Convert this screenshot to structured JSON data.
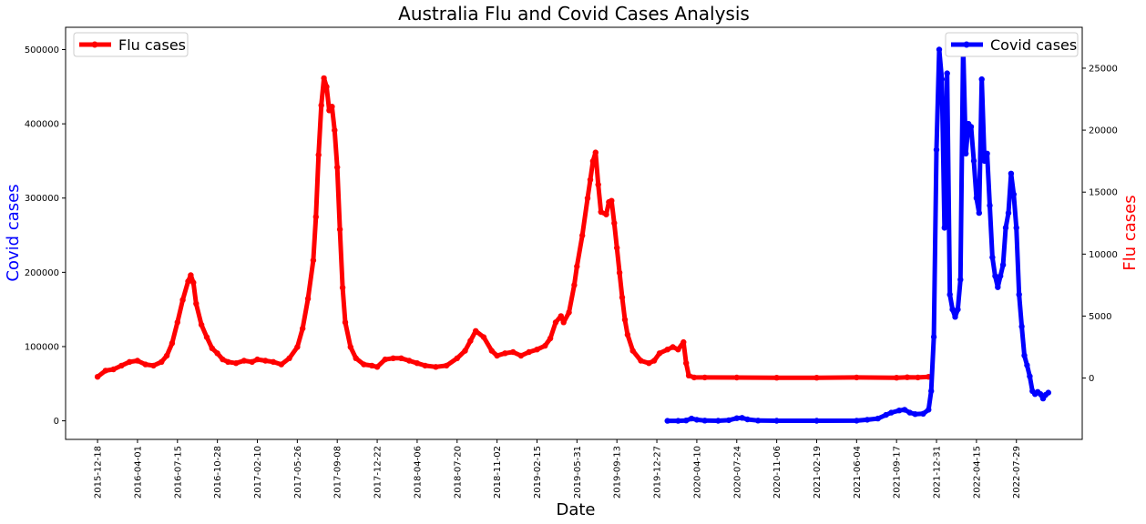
{
  "chart_data": {
    "type": "line",
    "title": "Australia Flu and Covid Cases Analysis",
    "xlabel": "Date",
    "y_left_label": "Covid cases",
    "y_right_label": "Flu cases",
    "x_ticks": [
      "2015-12-18",
      "2016-04-01",
      "2016-07-15",
      "2016-10-28",
      "2017-02-10",
      "2017-05-26",
      "2017-09-08",
      "2017-12-22",
      "2018-04-06",
      "2018-07-20",
      "2018-11-02",
      "2019-02-15",
      "2019-05-31",
      "2019-09-13",
      "2019-12-27",
      "2020-04-10",
      "2020-07-24",
      "2020-11-06",
      "2021-02-19",
      "2021-06-04",
      "2021-09-17",
      "2021-12-31",
      "2022-04-15",
      "2022-07-29"
    ],
    "y_left_ticks": [
      0,
      100000,
      200000,
      300000,
      400000,
      500000
    ],
    "y_right_ticks": [
      0,
      5000,
      10000,
      15000,
      20000,
      25000
    ],
    "y_left_lim": [
      -25000,
      530000
    ],
    "y_right_lim": [
      -4950,
      28300
    ],
    "x_range": [
      "2015-09-25",
      "2023-01-18"
    ],
    "legend_left": "Flu cases",
    "legend_right": "Covid cases",
    "colors": {
      "flu": "#ff0000",
      "covid": "#0000ff"
    },
    "series": [
      {
        "name": "Flu cases",
        "axis": "right",
        "color": "#ff0000",
        "points": [
          [
            "2015-12-18",
            100
          ],
          [
            "2016-01-08",
            600
          ],
          [
            "2016-01-29",
            700
          ],
          [
            "2016-02-19",
            1000
          ],
          [
            "2016-03-11",
            1300
          ],
          [
            "2016-04-01",
            1400
          ],
          [
            "2016-04-22",
            1100
          ],
          [
            "2016-05-13",
            1000
          ],
          [
            "2016-06-03",
            1300
          ],
          [
            "2016-06-17",
            1800
          ],
          [
            "2016-07-01",
            2800
          ],
          [
            "2016-07-15",
            4500
          ],
          [
            "2016-07-29",
            6300
          ],
          [
            "2016-08-12",
            7800
          ],
          [
            "2016-08-19",
            8300
          ],
          [
            "2016-08-26",
            7700
          ],
          [
            "2016-09-02",
            6000
          ],
          [
            "2016-09-16",
            4300
          ],
          [
            "2016-09-30",
            3300
          ],
          [
            "2016-10-14",
            2400
          ],
          [
            "2016-10-28",
            2000
          ],
          [
            "2016-11-11",
            1500
          ],
          [
            "2016-11-25",
            1300
          ],
          [
            "2016-12-16",
            1200
          ],
          [
            "2017-01-06",
            1400
          ],
          [
            "2017-01-27",
            1300
          ],
          [
            "2017-02-10",
            1500
          ],
          [
            "2017-03-03",
            1400
          ],
          [
            "2017-03-24",
            1300
          ],
          [
            "2017-04-14",
            1100
          ],
          [
            "2017-05-05",
            1600
          ],
          [
            "2017-05-26",
            2500
          ],
          [
            "2017-06-09",
            4000
          ],
          [
            "2017-06-23",
            6400
          ],
          [
            "2017-07-07",
            9500
          ],
          [
            "2017-07-14",
            13000
          ],
          [
            "2017-07-21",
            18000
          ],
          [
            "2017-07-28",
            22000
          ],
          [
            "2017-08-04",
            24200
          ],
          [
            "2017-08-11",
            23500
          ],
          [
            "2017-08-18",
            21600
          ],
          [
            "2017-08-25",
            21900
          ],
          [
            "2017-09-01",
            20000
          ],
          [
            "2017-09-08",
            17000
          ],
          [
            "2017-09-15",
            12000
          ],
          [
            "2017-09-22",
            7300
          ],
          [
            "2017-09-29",
            4500
          ],
          [
            "2017-10-13",
            2500
          ],
          [
            "2017-10-27",
            1600
          ],
          [
            "2017-11-17",
            1100
          ],
          [
            "2017-12-08",
            1000
          ],
          [
            "2017-12-22",
            900
          ],
          [
            "2018-01-12",
            1500
          ],
          [
            "2018-02-02",
            1600
          ],
          [
            "2018-02-23",
            1600
          ],
          [
            "2018-03-16",
            1400
          ],
          [
            "2018-04-06",
            1200
          ],
          [
            "2018-04-27",
            1000
          ],
          [
            "2018-05-25",
            900
          ],
          [
            "2018-06-22",
            1000
          ],
          [
            "2018-07-20",
            1600
          ],
          [
            "2018-08-10",
            2200
          ],
          [
            "2018-08-24",
            3000
          ],
          [
            "2018-09-07",
            3800
          ],
          [
            "2018-09-28",
            3300
          ],
          [
            "2018-10-19",
            2200
          ],
          [
            "2018-11-02",
            1800
          ],
          [
            "2018-11-23",
            2000
          ],
          [
            "2018-12-14",
            2100
          ],
          [
            "2019-01-04",
            1800
          ],
          [
            "2019-01-25",
            2100
          ],
          [
            "2019-02-15",
            2300
          ],
          [
            "2019-03-08",
            2600
          ],
          [
            "2019-03-22",
            3200
          ],
          [
            "2019-04-05",
            4500
          ],
          [
            "2019-04-19",
            5000
          ],
          [
            "2019-04-26",
            4500
          ],
          [
            "2019-05-10",
            5300
          ],
          [
            "2019-05-24",
            7500
          ],
          [
            "2019-05-31",
            9000
          ],
          [
            "2019-06-14",
            11500
          ],
          [
            "2019-06-28",
            14500
          ],
          [
            "2019-07-05",
            16000
          ],
          [
            "2019-07-12",
            17500
          ],
          [
            "2019-07-19",
            18200
          ],
          [
            "2019-07-26",
            15600
          ],
          [
            "2019-08-02",
            13400
          ],
          [
            "2019-08-16",
            13200
          ],
          [
            "2019-08-23",
            14200
          ],
          [
            "2019-08-30",
            14300
          ],
          [
            "2019-09-06",
            12500
          ],
          [
            "2019-09-13",
            10500
          ],
          [
            "2019-09-20",
            8500
          ],
          [
            "2019-09-27",
            6500
          ],
          [
            "2019-10-04",
            4700
          ],
          [
            "2019-10-11",
            3500
          ],
          [
            "2019-10-25",
            2200
          ],
          [
            "2019-11-15",
            1400
          ],
          [
            "2019-12-06",
            1200
          ],
          [
            "2019-12-20",
            1400
          ],
          [
            "2020-01-03",
            2000
          ],
          [
            "2020-01-24",
            2300
          ],
          [
            "2020-02-07",
            2500
          ],
          [
            "2020-02-21",
            2300
          ],
          [
            "2020-03-06",
            2900
          ],
          [
            "2020-03-13",
            1200
          ],
          [
            "2020-03-20",
            200
          ],
          [
            "2020-04-03",
            50
          ],
          [
            "2020-05-01",
            50
          ],
          [
            "2020-07-24",
            40
          ],
          [
            "2020-11-06",
            30
          ],
          [
            "2021-02-19",
            30
          ],
          [
            "2021-06-04",
            50
          ],
          [
            "2021-09-17",
            30
          ],
          [
            "2021-10-15",
            60
          ],
          [
            "2021-11-12",
            50
          ],
          [
            "2021-12-10",
            100
          ]
        ]
      },
      {
        "name": "Covid cases",
        "axis": "left",
        "color": "#0000ff",
        "points": [
          [
            "2020-01-24",
            0
          ],
          [
            "2020-02-21",
            0
          ],
          [
            "2020-03-13",
            500
          ],
          [
            "2020-03-27",
            3000
          ],
          [
            "2020-04-10",
            1500
          ],
          [
            "2020-05-01",
            300
          ],
          [
            "2020-06-05",
            100
          ],
          [
            "2020-07-03",
            800
          ],
          [
            "2020-07-24",
            3500
          ],
          [
            "2020-08-07",
            4000
          ],
          [
            "2020-08-21",
            2000
          ],
          [
            "2020-09-18",
            300
          ],
          [
            "2020-11-06",
            100
          ],
          [
            "2021-02-19",
            100
          ],
          [
            "2021-06-04",
            200
          ],
          [
            "2021-07-02",
            1500
          ],
          [
            "2021-07-30",
            3000
          ],
          [
            "2021-08-20",
            8000
          ],
          [
            "2021-09-03",
            11000
          ],
          [
            "2021-09-24",
            14000
          ],
          [
            "2021-10-08",
            15000
          ],
          [
            "2021-10-22",
            11000
          ],
          [
            "2021-11-05",
            9000
          ],
          [
            "2021-11-26",
            9500
          ],
          [
            "2021-12-10",
            15000
          ],
          [
            "2021-12-17",
            40000
          ],
          [
            "2021-12-24",
            113000
          ],
          [
            "2021-12-31",
            365000
          ],
          [
            "2022-01-07",
            500000
          ],
          [
            "2022-01-14",
            460000
          ],
          [
            "2022-01-21",
            260000
          ],
          [
            "2022-01-28",
            468000
          ],
          [
            "2022-02-04",
            170000
          ],
          [
            "2022-02-11",
            150000
          ],
          [
            "2022-02-18",
            140000
          ],
          [
            "2022-02-25",
            150000
          ],
          [
            "2022-03-04",
            190000
          ],
          [
            "2022-03-11",
            505000
          ],
          [
            "2022-03-18",
            360000
          ],
          [
            "2022-03-25",
            400000
          ],
          [
            "2022-04-01",
            396000
          ],
          [
            "2022-04-08",
            350000
          ],
          [
            "2022-04-15",
            300000
          ],
          [
            "2022-04-22",
            280000
          ],
          [
            "2022-04-29",
            460000
          ],
          [
            "2022-05-06",
            350000
          ],
          [
            "2022-05-13",
            360000
          ],
          [
            "2022-05-20",
            290000
          ],
          [
            "2022-05-27",
            220000
          ],
          [
            "2022-06-03",
            195000
          ],
          [
            "2022-06-10",
            180000
          ],
          [
            "2022-06-17",
            195000
          ],
          [
            "2022-06-24",
            210000
          ],
          [
            "2022-07-01",
            260000
          ],
          [
            "2022-07-08",
            280000
          ],
          [
            "2022-07-15",
            333000
          ],
          [
            "2022-07-22",
            305000
          ],
          [
            "2022-07-29",
            260000
          ],
          [
            "2022-08-05",
            170000
          ],
          [
            "2022-08-12",
            127000
          ],
          [
            "2022-08-19",
            88000
          ],
          [
            "2022-08-26",
            75000
          ],
          [
            "2022-09-02",
            60000
          ],
          [
            "2022-09-09",
            40000
          ],
          [
            "2022-09-16",
            36000
          ],
          [
            "2022-09-23",
            39000
          ],
          [
            "2022-09-30",
            36000
          ],
          [
            "2022-10-07",
            30000
          ],
          [
            "2022-10-14",
            35000
          ],
          [
            "2022-10-21",
            38000
          ]
        ]
      }
    ]
  }
}
